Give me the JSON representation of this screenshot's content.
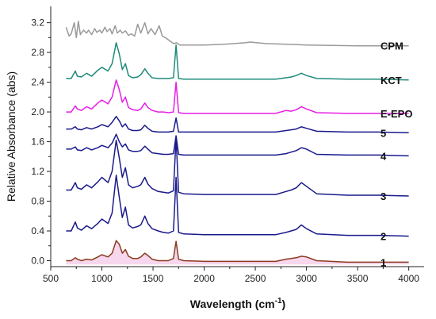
{
  "chart_data": {
    "type": "line",
    "title": "",
    "xlabel": "Wavelength",
    "xlabel_unit_base": "cm",
    "xlabel_unit_exp": "-1",
    "ylabel": "Relative Absorbance (abs)",
    "xlim": [
      500,
      4150
    ],
    "ylim": [
      -0.08,
      3.42
    ],
    "xticks": [
      500,
      1000,
      1500,
      2000,
      2500,
      3000,
      3500,
      4000
    ],
    "yticks": [
      0.0,
      0.4,
      0.8,
      1.2,
      1.6,
      2.0,
      2.4,
      2.8,
      3.2
    ],
    "ytick_labels": [
      "0.0",
      "0.4",
      "0.8",
      "1.2",
      "1.6",
      "2.0",
      "2.4",
      "2.8",
      "3.2"
    ],
    "grid": false,
    "legend": "labels at right end of each trace",
    "series": [
      {
        "name": "1",
        "color": "#8b3a1e",
        "fill": "#f6d7ee",
        "x": [
          650,
          700,
          740,
          760,
          800,
          850,
          900,
          960,
          1000,
          1060,
          1100,
          1140,
          1170,
          1200,
          1230,
          1260,
          1300,
          1350,
          1380,
          1420,
          1450,
          1490,
          1550,
          1600,
          1650,
          1700,
          1725,
          1750,
          1800,
          2000,
          2500,
          2700,
          2800,
          2850,
          2900,
          2950,
          3000,
          3100,
          3400,
          3700,
          4000
        ],
        "y": [
          0.0,
          0.0,
          0.04,
          0.02,
          0.0,
          0.02,
          0.01,
          0.05,
          0.08,
          0.05,
          0.1,
          0.27,
          0.22,
          0.1,
          0.15,
          0.06,
          0.03,
          0.03,
          0.05,
          0.1,
          0.07,
          0.02,
          0.0,
          0.0,
          0.0,
          0.03,
          0.26,
          0.02,
          0.0,
          -0.01,
          -0.01,
          -0.01,
          0.02,
          0.03,
          0.04,
          0.06,
          0.05,
          0.0,
          -0.02,
          -0.02,
          -0.02
        ]
      },
      {
        "name": "2",
        "color": "#1a1a8c",
        "x": [
          650,
          700,
          740,
          760,
          800,
          850,
          900,
          960,
          1000,
          1060,
          1100,
          1140,
          1170,
          1200,
          1230,
          1260,
          1300,
          1350,
          1380,
          1420,
          1450,
          1490,
          1550,
          1600,
          1650,
          1700,
          1725,
          1750,
          1800,
          2000,
          2500,
          2700,
          2800,
          2850,
          2900,
          2950,
          3000,
          3100,
          3400,
          3700,
          4000
        ],
        "y": [
          0.4,
          0.4,
          0.52,
          0.44,
          0.41,
          0.47,
          0.43,
          0.5,
          0.56,
          0.5,
          0.64,
          1.15,
          0.85,
          0.58,
          0.72,
          0.48,
          0.44,
          0.46,
          0.48,
          0.6,
          0.5,
          0.43,
          0.4,
          0.38,
          0.37,
          0.4,
          1.12,
          0.38,
          0.36,
          0.35,
          0.35,
          0.35,
          0.38,
          0.4,
          0.42,
          0.48,
          0.43,
          0.36,
          0.34,
          0.34,
          0.33
        ]
      },
      {
        "name": "3",
        "color": "#1a1a8c",
        "x": [
          650,
          700,
          740,
          760,
          800,
          850,
          900,
          960,
          1000,
          1060,
          1100,
          1140,
          1170,
          1200,
          1230,
          1260,
          1300,
          1350,
          1380,
          1420,
          1450,
          1490,
          1550,
          1600,
          1650,
          1700,
          1725,
          1750,
          1800,
          2000,
          2500,
          2700,
          2800,
          2850,
          2900,
          2950,
          3000,
          3100,
          3400,
          3700,
          4000
        ],
        "y": [
          0.95,
          0.95,
          1.05,
          0.98,
          0.96,
          1.02,
          0.98,
          1.06,
          1.12,
          1.05,
          1.2,
          1.62,
          1.38,
          1.12,
          1.25,
          1.02,
          0.98,
          1.0,
          1.02,
          1.12,
          1.03,
          0.97,
          0.93,
          0.92,
          0.91,
          0.94,
          1.65,
          0.92,
          0.9,
          0.89,
          0.89,
          0.89,
          0.93,
          0.95,
          0.98,
          1.05,
          1.0,
          0.9,
          0.88,
          0.88,
          0.87
        ]
      },
      {
        "name": "4",
        "color": "#1a1a8c",
        "x": [
          650,
          700,
          740,
          760,
          800,
          850,
          900,
          960,
          1000,
          1060,
          1100,
          1140,
          1170,
          1200,
          1230,
          1260,
          1300,
          1350,
          1380,
          1420,
          1450,
          1490,
          1550,
          1600,
          1650,
          1700,
          1725,
          1750,
          1800,
          2000,
          2500,
          2700,
          2800,
          2850,
          2900,
          2950,
          3000,
          3100,
          3400,
          3700,
          4000
        ],
        "y": [
          1.5,
          1.5,
          1.53,
          1.49,
          1.48,
          1.52,
          1.49,
          1.52,
          1.55,
          1.52,
          1.58,
          1.7,
          1.6,
          1.53,
          1.57,
          1.49,
          1.47,
          1.47,
          1.48,
          1.54,
          1.5,
          1.45,
          1.44,
          1.43,
          1.43,
          1.44,
          1.68,
          1.43,
          1.42,
          1.42,
          1.42,
          1.42,
          1.44,
          1.46,
          1.48,
          1.52,
          1.5,
          1.43,
          1.42,
          1.42,
          1.41
        ]
      },
      {
        "name": "5",
        "color": "#1a1a8c",
        "x": [
          650,
          700,
          740,
          760,
          800,
          850,
          900,
          960,
          1000,
          1060,
          1100,
          1140,
          1170,
          1200,
          1230,
          1260,
          1300,
          1350,
          1380,
          1420,
          1450,
          1490,
          1550,
          1600,
          1650,
          1700,
          1725,
          1750,
          1800,
          2000,
          2500,
          2700,
          2800,
          2850,
          2900,
          2950,
          3000,
          3100,
          3400,
          3700,
          4000
        ],
        "y": [
          1.77,
          1.77,
          1.8,
          1.77,
          1.76,
          1.79,
          1.77,
          1.8,
          1.83,
          1.8,
          1.86,
          1.94,
          1.88,
          1.8,
          1.84,
          1.77,
          1.75,
          1.75,
          1.76,
          1.82,
          1.78,
          1.74,
          1.73,
          1.73,
          1.73,
          1.74,
          1.92,
          1.73,
          1.73,
          1.73,
          1.73,
          1.73,
          1.75,
          1.76,
          1.77,
          1.8,
          1.78,
          1.74,
          1.73,
          1.73,
          1.72
        ]
      },
      {
        "name": "E-EPO",
        "color": "#e61ee6",
        "x": [
          650,
          700,
          740,
          760,
          800,
          850,
          900,
          960,
          1000,
          1060,
          1100,
          1140,
          1170,
          1200,
          1230,
          1260,
          1300,
          1350,
          1380,
          1420,
          1450,
          1490,
          1550,
          1600,
          1650,
          1700,
          1725,
          1750,
          1800,
          2000,
          2500,
          2700,
          2800,
          2850,
          2900,
          2950,
          3000,
          3100,
          3400,
          3700,
          4000
        ],
        "y": [
          2.0,
          2.0,
          2.08,
          2.04,
          2.02,
          2.07,
          2.04,
          2.12,
          2.16,
          2.11,
          2.2,
          2.43,
          2.3,
          2.13,
          2.2,
          2.06,
          2.03,
          2.02,
          2.04,
          2.12,
          2.06,
          2.02,
          2.0,
          2.0,
          1.99,
          2.0,
          2.4,
          1.99,
          1.98,
          1.98,
          1.98,
          1.98,
          2.02,
          2.01,
          2.03,
          2.07,
          2.04,
          1.99,
          1.98,
          1.98,
          1.98
        ]
      },
      {
        "name": "KCT",
        "color": "#1f8a7a",
        "x": [
          650,
          700,
          740,
          760,
          800,
          850,
          900,
          960,
          1000,
          1060,
          1100,
          1140,
          1170,
          1200,
          1230,
          1260,
          1300,
          1350,
          1380,
          1420,
          1450,
          1490,
          1550,
          1600,
          1650,
          1700,
          1725,
          1750,
          1800,
          2000,
          2500,
          2700,
          2800,
          2850,
          2900,
          2950,
          3000,
          3100,
          3400,
          3700,
          4000
        ],
        "y": [
          2.45,
          2.45,
          2.55,
          2.48,
          2.47,
          2.52,
          2.48,
          2.56,
          2.6,
          2.55,
          2.65,
          2.93,
          2.78,
          2.57,
          2.65,
          2.49,
          2.46,
          2.47,
          2.5,
          2.58,
          2.52,
          2.46,
          2.45,
          2.45,
          2.45,
          2.46,
          2.9,
          2.45,
          2.44,
          2.44,
          2.44,
          2.44,
          2.46,
          2.47,
          2.49,
          2.52,
          2.49,
          2.45,
          2.44,
          2.44,
          2.43
        ]
      },
      {
        "name": "CPM",
        "color": "#9a9a9a",
        "x": [
          650,
          680,
          700,
          730,
          750,
          770,
          790,
          820,
          850,
          870,
          900,
          930,
          950,
          980,
          1000,
          1030,
          1050,
          1080,
          1100,
          1130,
          1150,
          1180,
          1200,
          1230,
          1260,
          1290,
          1320,
          1350,
          1380,
          1420,
          1450,
          1480,
          1520,
          1560,
          1590,
          1620,
          1660,
          1700,
          1730,
          1760,
          1800,
          2000,
          2200,
          2400,
          2450,
          2600,
          2800,
          3000,
          3500,
          4000
        ],
        "y": [
          3.14,
          3.02,
          3.05,
          3.2,
          3.0,
          3.22,
          3.04,
          3.1,
          3.06,
          3.1,
          3.04,
          3.12,
          3.07,
          3.1,
          3.06,
          3.14,
          3.08,
          3.12,
          3.05,
          3.16,
          3.06,
          3.1,
          3.06,
          3.09,
          3.03,
          3.05,
          3.02,
          3.18,
          3.06,
          3.2,
          3.05,
          3.12,
          3.04,
          3.16,
          3.02,
          3.0,
          2.96,
          2.92,
          2.93,
          2.9,
          2.9,
          2.9,
          2.91,
          2.93,
          2.94,
          2.92,
          2.91,
          2.9,
          2.89,
          2.89
        ]
      }
    ]
  }
}
